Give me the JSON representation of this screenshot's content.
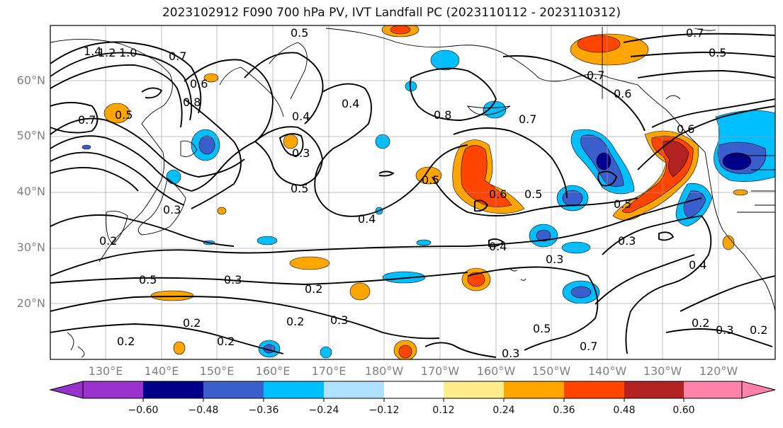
{
  "title": "2023102912 F090 700 hPa PV, IVT Landfall PC (2023110112 - 2023110312)",
  "lat_labels": [
    "60°N",
    "50°N",
    "40°N",
    "30°N",
    "20°N"
  ],
  "lon_labels": [
    "130°E",
    "140°E",
    "150°E",
    "160°E",
    "170°E",
    "180°W",
    "170°W",
    "160°W",
    "150°W",
    "140°W",
    "130°W",
    "120°W"
  ],
  "colorbar": {
    "ticks": [
      "−0.60",
      "−0.48",
      "−0.36",
      "−0.24",
      "−0.12",
      "0.12",
      "0.24",
      "0.36",
      "0.48",
      "0.60"
    ],
    "colors": [
      "#9932cc",
      "#00008b",
      "#3a5fcd",
      "#00bfff",
      "#b0e2ff",
      "#ffffff",
      "#ffec8b",
      "#ffa500",
      "#ff4500",
      "#b22222",
      "#ff82ab"
    ]
  },
  "contour_labels": [
    "1.4",
    "1.2",
    "1.0",
    "0.7",
    "0.6",
    "0.8",
    "0.7",
    "0.5",
    "0.4",
    "0.3",
    "0.5",
    "0.5",
    "0.4",
    "0.8",
    "0.7",
    "0.5",
    "0.6",
    "0.5",
    "0.4",
    "0.3",
    "0.2",
    "0.5",
    "0.3",
    "0.2",
    "0.2",
    "0.3",
    "0.2",
    "0.2",
    "0.2",
    "0.3",
    "0.5",
    "0.7",
    "0.7",
    "0.6",
    "0.7",
    "0.5",
    "0.4",
    "0.3",
    "0.5",
    "0.3",
    "0.2",
    "0.3",
    "0.2",
    "0.6",
    "0.4"
  ]
}
